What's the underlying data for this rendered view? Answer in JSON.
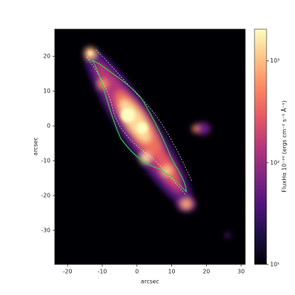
{
  "chart_data": {
    "type": "heatmap",
    "xlabel": "arcsec",
    "ylabel": "arcsec",
    "xlim": [
      -23.7,
      31.2
    ],
    "ylim": [
      -39.8,
      27.8
    ],
    "xticks": [
      -20,
      -10,
      0,
      10,
      20,
      30
    ],
    "yticks": [
      20,
      10,
      0,
      -10,
      -20,
      -30
    ],
    "colormap": "magma",
    "colorbar": {
      "label": "FluxHα 10⁻²⁰ (ergs cm⁻² s⁻¹ Å⁻¹)",
      "scale": "log",
      "lim": [
        10,
        2050
      ],
      "ticks": [
        {
          "value": 10,
          "label": "10¹"
        },
        {
          "value": 100,
          "label": "10²"
        },
        {
          "value": 1000,
          "label": "10³"
        }
      ]
    }
  }
}
